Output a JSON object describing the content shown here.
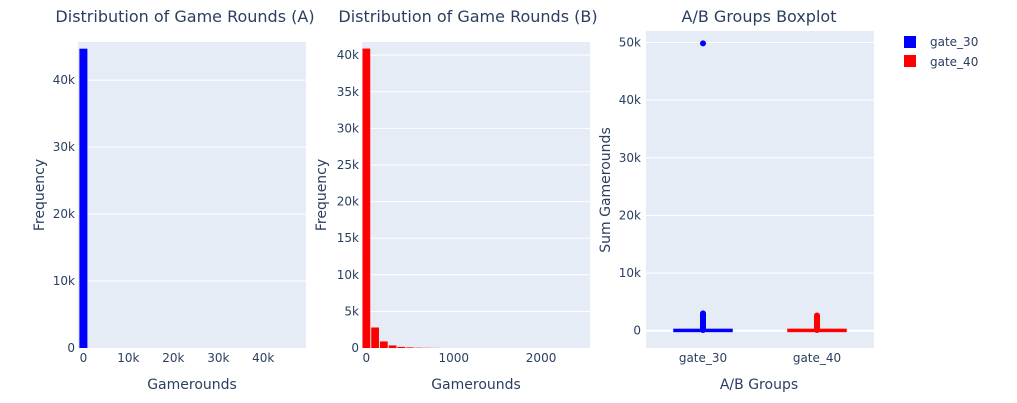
{
  "chart_data": [
    {
      "type": "bar",
      "title": "Distribution of Game Rounds (A)",
      "xlabel": "Gamerounds",
      "ylabel": "Frequency",
      "series_name": "gate_30",
      "color": "#0000ff",
      "xlim": [
        -1200,
        49500
      ],
      "ylim": [
        0,
        45700
      ],
      "xticks": [
        {
          "v": 0,
          "label": "0"
        },
        {
          "v": 10000,
          "label": "10k"
        },
        {
          "v": 20000,
          "label": "20k"
        },
        {
          "v": 30000,
          "label": "30k"
        },
        {
          "v": 40000,
          "label": "40k"
        }
      ],
      "yticks": [
        {
          "v": 0,
          "label": "0"
        },
        {
          "v": 10000,
          "label": "10k"
        },
        {
          "v": 20000,
          "label": "20k"
        },
        {
          "v": 30000,
          "label": "30k"
        },
        {
          "v": 40000,
          "label": "40k"
        }
      ],
      "bins": [
        {
          "x0": -1000,
          "x1": 1000,
          "count": 44700
        }
      ]
    },
    {
      "type": "bar",
      "title": "Distribution of Game Rounds (B)",
      "xlabel": "Gamerounds",
      "ylabel": "Frequency",
      "series_name": "gate_40",
      "color": "#ff0000",
      "xlim": [
        -50,
        2560
      ],
      "ylim": [
        0,
        41800
      ],
      "xticks": [
        {
          "v": 0,
          "label": "0"
        },
        {
          "v": 1000,
          "label": "1000"
        },
        {
          "v": 2000,
          "label": "2000"
        }
      ],
      "yticks": [
        {
          "v": 0,
          "label": "0"
        },
        {
          "v": 5000,
          "label": "5k"
        },
        {
          "v": 10000,
          "label": "10k"
        },
        {
          "v": 15000,
          "label": "15k"
        },
        {
          "v": 20000,
          "label": "20k"
        },
        {
          "v": 25000,
          "label": "25k"
        },
        {
          "v": 30000,
          "label": "30k"
        },
        {
          "v": 35000,
          "label": "35k"
        },
        {
          "v": 40000,
          "label": "40k"
        }
      ],
      "bins": [
        {
          "x0": -50,
          "x1": 50,
          "count": 40900
        },
        {
          "x0": 50,
          "x1": 150,
          "count": 2800
        },
        {
          "x0": 150,
          "x1": 250,
          "count": 900
        },
        {
          "x0": 250,
          "x1": 350,
          "count": 350
        },
        {
          "x0": 350,
          "x1": 450,
          "count": 150
        },
        {
          "x0": 450,
          "x1": 550,
          "count": 80
        },
        {
          "x0": 550,
          "x1": 650,
          "count": 40
        },
        {
          "x0": 650,
          "x1": 750,
          "count": 25
        },
        {
          "x0": 750,
          "x1": 850,
          "count": 15
        }
      ]
    },
    {
      "type": "box",
      "title": "A/B Groups Boxplot",
      "xlabel": "A/B Groups",
      "ylabel": "Sum Gamerounds",
      "categories": [
        "gate_30",
        "gate_40"
      ],
      "colors": [
        "#0000ff",
        "#ff0000"
      ],
      "ylim": [
        -3000,
        52000
      ],
      "yticks": [
        {
          "v": 0,
          "label": "0"
        },
        {
          "v": 10000,
          "label": "10k"
        },
        {
          "v": 20000,
          "label": "20k"
        },
        {
          "v": 30000,
          "label": "30k"
        },
        {
          "v": 40000,
          "label": "40k"
        },
        {
          "v": 50000,
          "label": "50k"
        }
      ],
      "boxes": [
        {
          "name": "gate_30",
          "q1": 5,
          "median": 17,
          "q3": 50,
          "whisker_low": 0,
          "whisker_high": 120,
          "outlier_max_cluster": 3000,
          "outliers": [
            49854
          ]
        },
        {
          "name": "gate_40",
          "q1": 5,
          "median": 16,
          "q3": 52,
          "whisker_low": 0,
          "whisker_high": 125,
          "outlier_max_cluster": 2640,
          "outliers": []
        }
      ]
    }
  ],
  "legend": {
    "position": "top-right",
    "items": [
      {
        "label": "gate_30",
        "color": "#0000ff"
      },
      {
        "label": "gate_40",
        "color": "#ff0000"
      }
    ]
  },
  "style": {
    "plot_bg": "#e5ecf6",
    "grid": "#ffffff",
    "text": "#2a3f5f"
  }
}
